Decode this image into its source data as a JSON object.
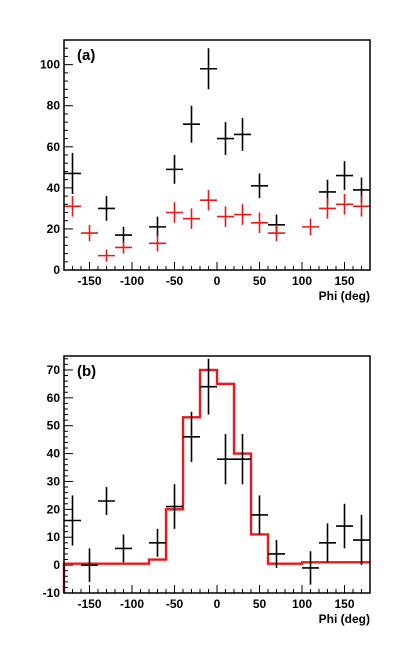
{
  "chart_data": [
    {
      "type": "scatter",
      "panel_label": "(a)",
      "xlabel": "Phi (deg)",
      "ylabel": "",
      "xlim": [
        -180,
        180
      ],
      "ylim": [
        0,
        112
      ],
      "x_ticks": [
        -150,
        -100,
        -50,
        0,
        50,
        100,
        150
      ],
      "y_ticks": [
        0,
        20,
        40,
        60,
        80,
        100
      ],
      "colors": {
        "black_series": "#000000",
        "red_series": "#e41a1c"
      },
      "series": [
        {
          "color": "black",
          "x_halfwidth": 10,
          "points": [
            {
              "x": -170,
              "y": 47,
              "err": 10
            },
            {
              "x": -130,
              "y": 30,
              "err": 6
            },
            {
              "x": -110,
              "y": 17,
              "err": 4
            },
            {
              "x": -70,
              "y": 21,
              "err": 5
            },
            {
              "x": -50,
              "y": 49,
              "err": 7
            },
            {
              "x": -30,
              "y": 71,
              "err": 9
            },
            {
              "x": -10,
              "y": 98,
              "err": 10
            },
            {
              "x": 10,
              "y": 64,
              "err": 8
            },
            {
              "x": 30,
              "y": 66,
              "err": 8
            },
            {
              "x": 50,
              "y": 41,
              "err": 6
            },
            {
              "x": 70,
              "y": 22,
              "err": 5
            },
            {
              "x": 130,
              "y": 38,
              "err": 6
            },
            {
              "x": 150,
              "y": 46,
              "err": 7
            },
            {
              "x": 170,
              "y": 39,
              "err": 6
            }
          ]
        },
        {
          "color": "red",
          "x_halfwidth": 10,
          "points": [
            {
              "x": -170,
              "y": 31,
              "err": 5
            },
            {
              "x": -150,
              "y": 18,
              "err": 4
            },
            {
              "x": -130,
              "y": 7,
              "err": 3
            },
            {
              "x": -110,
              "y": 11,
              "err": 3
            },
            {
              "x": -70,
              "y": 13,
              "err": 4
            },
            {
              "x": -50,
              "y": 28,
              "err": 5
            },
            {
              "x": -30,
              "y": 25,
              "err": 5
            },
            {
              "x": -10,
              "y": 34,
              "err": 5
            },
            {
              "x": 10,
              "y": 26,
              "err": 5
            },
            {
              "x": 30,
              "y": 27,
              "err": 5
            },
            {
              "x": 50,
              "y": 23,
              "err": 5
            },
            {
              "x": 70,
              "y": 18,
              "err": 4
            },
            {
              "x": 110,
              "y": 21,
              "err": 4
            },
            {
              "x": 130,
              "y": 30,
              "err": 5
            },
            {
              "x": 150,
              "y": 32,
              "err": 5
            },
            {
              "x": 170,
              "y": 31,
              "err": 5
            }
          ]
        }
      ]
    },
    {
      "type": "scatter",
      "panel_label": "(b)",
      "xlabel": "Phi (deg)",
      "ylabel": "",
      "xlim": [
        -180,
        180
      ],
      "ylim": [
        -10,
        75
      ],
      "x_ticks": [
        -150,
        -100,
        -50,
        0,
        50,
        100,
        150
      ],
      "y_ticks": [
        -10,
        0,
        10,
        20,
        30,
        40,
        50,
        60,
        70
      ],
      "colors": {
        "black_series": "#000000",
        "red_series": "#e41a1c"
      },
      "series": [
        {
          "color": "black",
          "x_halfwidth": 10,
          "points": [
            {
              "x": -170,
              "y": 16,
              "err": 9
            },
            {
              "x": -150,
              "y": 0,
              "err": 6
            },
            {
              "x": -130,
              "y": 23,
              "err": 5
            },
            {
              "x": -110,
              "y": 6,
              "err": 5
            },
            {
              "x": -70,
              "y": 8,
              "err": 5
            },
            {
              "x": -50,
              "y": 21,
              "err": 8
            },
            {
              "x": -30,
              "y": 46,
              "err": 9
            },
            {
              "x": -10,
              "y": 64,
              "err": 10
            },
            {
              "x": 10,
              "y": 38,
              "err": 9
            },
            {
              "x": 30,
              "y": 38,
              "err": 9
            },
            {
              "x": 50,
              "y": 18,
              "err": 7
            },
            {
              "x": 70,
              "y": 4,
              "err": 5
            },
            {
              "x": 110,
              "y": -1,
              "err": 6
            },
            {
              "x": 130,
              "y": 8,
              "err": 7
            },
            {
              "x": 150,
              "y": 14,
              "err": 8
            },
            {
              "x": 170,
              "y": 9,
              "err": 9
            }
          ]
        }
      ],
      "histogram": {
        "color": "red",
        "bin_edges": [
          -180,
          -80,
          -60,
          -40,
          -20,
          0,
          20,
          40,
          60,
          100,
          180
        ],
        "values": [
          0.5,
          2,
          20,
          53,
          70,
          65,
          40,
          11,
          0.5,
          1
        ]
      }
    }
  ]
}
